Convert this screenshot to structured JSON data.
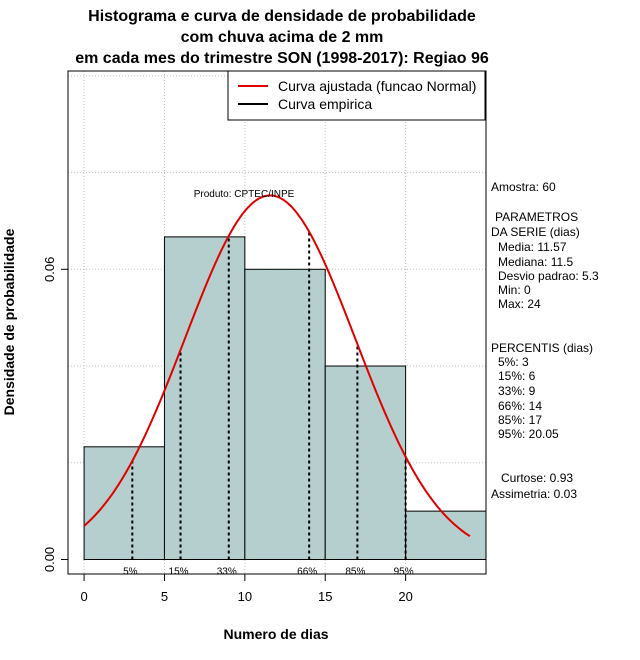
{
  "chart_data": {
    "type": "bar",
    "title_lines": [
      "Histograma e curva de densidade de probabilidade",
      "com chuva acima de 2 mm",
      "em cada mes do trimestre SON (1998-2017): Regiao 96"
    ],
    "xlabel": "Numero de dias",
    "ylabel": "Densidade de probabilidade",
    "xlim": [
      -1,
      25
    ],
    "ylim": [
      -0.003,
      0.101
    ],
    "x_ticks": [
      0,
      5,
      10,
      15,
      20
    ],
    "y_ticks": [
      0.0,
      0.06
    ],
    "y_tick_labels": [
      "0.00",
      "0.06"
    ],
    "grid_x": [
      0,
      5,
      10,
      15,
      20
    ],
    "grid_y": [
      0.02,
      0.04,
      0.06,
      0.08,
      0.1
    ],
    "bins": [
      {
        "start": 0,
        "end": 5,
        "density": 0.0233
      },
      {
        "start": 5,
        "end": 10,
        "density": 0.0667
      },
      {
        "start": 10,
        "end": 15,
        "density": 0.06
      },
      {
        "start": 15,
        "end": 20,
        "density": 0.04
      },
      {
        "start": 20,
        "end": 25,
        "density": 0.01
      }
    ],
    "bar_color": "#b5cece",
    "normal_curve": {
      "mean": 11.57,
      "sd": 5.3,
      "x_min": 0,
      "x_max": 24,
      "color": "#e00000"
    },
    "percentile_lines": [
      {
        "label": "5%",
        "x": 3
      },
      {
        "label": "15%",
        "x": 6
      },
      {
        "label": "33%",
        "x": 9
      },
      {
        "label": "66%",
        "x": 14
      },
      {
        "label": "85%",
        "x": 17
      },
      {
        "label": "95%",
        "x": 20
      }
    ],
    "legend": [
      {
        "label": "Curva ajustada (funcao Normal)",
        "color": "#e00000"
      },
      {
        "label": "Curva empirica",
        "color": "#000000"
      }
    ],
    "product_label": "Produto: CPTEC/INPE",
    "stats_lines": [
      "Amostra: 60",
      "PARAMETROS",
      "DA SERIE (dias)",
      "Media: 11.57",
      "Mediana: 11.5",
      "Desvio padrao: 5.3",
      "Min: 0",
      "Max: 24",
      "PERCENTIS (dias)",
      "5%: 3",
      "15%: 6",
      "33%: 9",
      "66%: 14",
      "85%: 17",
      "95%: 20.05",
      "Curtose: 0.93",
      "Assimetria: 0.03"
    ]
  }
}
